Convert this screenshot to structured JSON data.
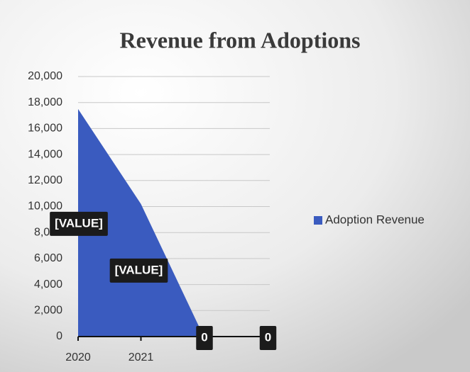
{
  "chart_data": {
    "type": "area",
    "title": "Revenue from Adoptions",
    "categories": [
      "2020",
      "2021",
      null,
      null
    ],
    "series": [
      {
        "name": "Adoption Revenue",
        "color": "#3a5bbf",
        "values": [
          17500,
          10200,
          0,
          0
        ],
        "value_labels": [
          "[VALUE]",
          "[VALUE]",
          "0",
          "0"
        ]
      }
    ],
    "ylim": [
      0,
      20000
    ],
    "yticks": [
      0,
      {
        "value": 2000,
        "label": "2,000"
      },
      {
        "value": 4000,
        "label": "4,000"
      },
      {
        "value": 6000,
        "label": "6,000"
      },
      {
        "value": 8000,
        "label": "8,000"
      },
      {
        "value": 10000,
        "label": "10,000"
      },
      {
        "value": 12000,
        "label": "12,000"
      },
      {
        "value": 14000,
        "label": "14,000"
      },
      {
        "value": 16000,
        "label": "16,000"
      },
      {
        "value": 18000,
        "label": "18,000"
      },
      {
        "value": 20000,
        "label": "20,000"
      }
    ],
    "grid": true,
    "legend": "right"
  }
}
